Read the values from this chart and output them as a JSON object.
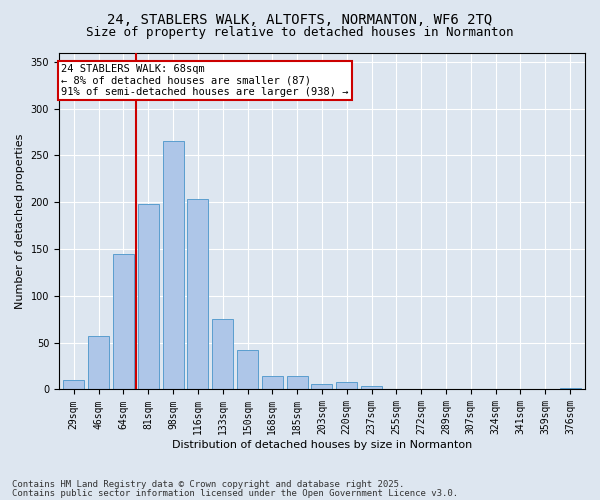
{
  "title_line1": "24, STABLERS WALK, ALTOFTS, NORMANTON, WF6 2TQ",
  "title_line2": "Size of property relative to detached houses in Normanton",
  "xlabel": "Distribution of detached houses by size in Normanton",
  "ylabel": "Number of detached properties",
  "categories": [
    "29sqm",
    "46sqm",
    "64sqm",
    "81sqm",
    "98sqm",
    "116sqm",
    "133sqm",
    "150sqm",
    "168sqm",
    "185sqm",
    "203sqm",
    "220sqm",
    "237sqm",
    "255sqm",
    "272sqm",
    "289sqm",
    "307sqm",
    "324sqm",
    "341sqm",
    "359sqm",
    "376sqm"
  ],
  "values": [
    10,
    57,
    145,
    198,
    265,
    204,
    75,
    42,
    14,
    14,
    6,
    8,
    4,
    0,
    0,
    0,
    0,
    0,
    0,
    0,
    2
  ],
  "bar_color": "#aec6e8",
  "bar_edge_color": "#5a9ecf",
  "vline_color": "#cc0000",
  "annotation_text": "24 STABLERS WALK: 68sqm\n← 8% of detached houses are smaller (87)\n91% of semi-detached houses are larger (938) →",
  "annotation_box_color": "#ffffff",
  "annotation_edge_color": "#cc0000",
  "ylim": [
    0,
    360
  ],
  "yticks": [
    0,
    50,
    100,
    150,
    200,
    250,
    300,
    350
  ],
  "bg_color": "#dde6f0",
  "plot_bg_color": "#dde6f0",
  "footer_line1": "Contains HM Land Registry data © Crown copyright and database right 2025.",
  "footer_line2": "Contains public sector information licensed under the Open Government Licence v3.0.",
  "title_fontsize": 10,
  "subtitle_fontsize": 9,
  "tick_fontsize": 7,
  "label_fontsize": 8,
  "footer_fontsize": 6.5,
  "annotation_fontsize": 7.5
}
